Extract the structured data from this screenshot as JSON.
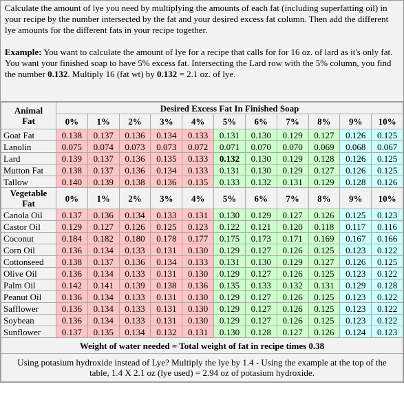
{
  "intro": {
    "text": "Calculate the amount of lye you need by multiplying the amounts of each fat (including superfatting oil) in your recipe by the number intersected by the fat and your desired excess fat column. Then add the different lye amounts for the different fats in your recipe together.",
    "example": {
      "label": "Example:",
      "text_1": " You want to calculate the amount of lye for a recipe that calls for for 16 oz. of lard as it's only fat. You want your finished soap to have 5% excess fat. Intersecting the Lard row with the 5% column, you find the number ",
      "value_1": "0.132",
      "text_2": ". Multiply 16 (fat wt) by ",
      "value_2": "0.132",
      "text_3": " = 2.1 oz. of lye."
    }
  },
  "table": {
    "title": "Desired Excess Fat In Finished Soap",
    "columns": [
      "0%",
      "1%",
      "2%",
      "3%",
      "4%",
      "5%",
      "6%",
      "7%",
      "8%",
      "9%",
      "10%"
    ],
    "sections": [
      {
        "label": "Animal Fat",
        "rows": [
          {
            "name": "Goat Fat",
            "values": [
              "0.138",
              "0.137",
              "0.136",
              "0.134",
              "0.133",
              "0.131",
              "0.130",
              "0.129",
              "0.127",
              "0.126",
              "0.125"
            ]
          },
          {
            "name": "Lanolin",
            "values": [
              "0.075",
              "0.074",
              "0.073",
              "0.073",
              "0.072",
              "0.071",
              "0.070",
              "0.070",
              "0.069",
              "0.068",
              "0.067"
            ]
          },
          {
            "name": "Lard",
            "values": [
              "0.139",
              "0.137",
              "0.136",
              "0.135",
              "0.133",
              "0.132",
              "0.130",
              "0.129",
              "0.128",
              "0.126",
              "0.125"
            ]
          },
          {
            "name": "Mutton Fat",
            "values": [
              "0.138",
              "0.137",
              "0.136",
              "0.134",
              "0.133",
              "0.131",
              "0.130",
              "0.129",
              "0.127",
              "0.126",
              "0.125"
            ]
          },
          {
            "name": "Tallow",
            "values": [
              "0.140",
              "0.139",
              "0.138",
              "0.136",
              "0.135",
              "0.133",
              "0.132",
              "0.131",
              "0.129",
              "0.128",
              "0.126"
            ]
          }
        ]
      },
      {
        "label": "Vegetable Fat",
        "rows": [
          {
            "name": "Canola Oil",
            "values": [
              "0.137",
              "0.136",
              "0.134",
              "0.133",
              "0.131",
              "0.130",
              "0.129",
              "0.127",
              "0.126",
              "0.125",
              "0.123"
            ]
          },
          {
            "name": "Castor Oil",
            "values": [
              "0.129",
              "0.127",
              "0.126",
              "0.125",
              "0.123",
              "0.122",
              "0.121",
              "0.120",
              "0.118",
              "0.117",
              "0.116"
            ]
          },
          {
            "name": "Coconut",
            "values": [
              "0.184",
              "0.182",
              "0.180",
              "0.178",
              "0.177",
              "0.175",
              "0.173",
              "0.171",
              "0.169",
              "0.167",
              "0.166"
            ]
          },
          {
            "name": "Corn Oil",
            "values": [
              "0.136",
              "0.134",
              "0.133",
              "0.131",
              "0.130",
              "0.129",
              "0.127",
              "0.126",
              "0.125",
              "0.123",
              "0.122"
            ]
          },
          {
            "name": "Cottonseed",
            "values": [
              "0.138",
              "0.137",
              "0.136",
              "0.134",
              "0.133",
              "0.131",
              "0.130",
              "0.129",
              "0.127",
              "0.126",
              "0.125"
            ]
          },
          {
            "name": "Olive Oil",
            "values": [
              "0.136",
              "0.134",
              "0.133",
              "0.131",
              "0.130",
              "0.129",
              "0.127",
              "0.126",
              "0.125",
              "0.123",
              "0.122"
            ]
          },
          {
            "name": "Palm Oil",
            "values": [
              "0.142",
              "0.141",
              "0.139",
              "0.138",
              "0.136",
              "0.135",
              "0.133",
              "0.132",
              "0.131",
              "0.129",
              "0.128"
            ]
          },
          {
            "name": "Peanut Oil",
            "values": [
              "0.136",
              "0.134",
              "0.133",
              "0.131",
              "0.130",
              "0.129",
              "0.127",
              "0.126",
              "0.125",
              "0.123",
              "0.122"
            ]
          },
          {
            "name": "Safflower",
            "values": [
              "0.136",
              "0.134",
              "0.133",
              "0.131",
              "0.130",
              "0.129",
              "0.127",
              "0.126",
              "0.125",
              "0.123",
              "0.122"
            ]
          },
          {
            "name": "Soybean",
            "values": [
              "0.136",
              "0.134",
              "0.133",
              "0.131",
              "0.130",
              "0.129",
              "0.127",
              "0.126",
              "0.125",
              "0.123",
              "0.122"
            ]
          },
          {
            "name": "Sunflower",
            "values": [
              "0.137",
              "0.135",
              "0.134",
              "0.132",
              "0.131",
              "0.130",
              "0.128",
              "0.127",
              "0.126",
              "0.124",
              "0.123"
            ]
          }
        ]
      }
    ],
    "water_note": "Weight of water needed = Total weight of fat in recipe times 0.38",
    "koh_note": "Using potasium hydroxide instead of Lye? Multiply the lye by 1.4 - Using the example at the top of the table, 1.4 X 2.1 oz (lye used) = 2.94 oz of potasium hydroxide."
  }
}
